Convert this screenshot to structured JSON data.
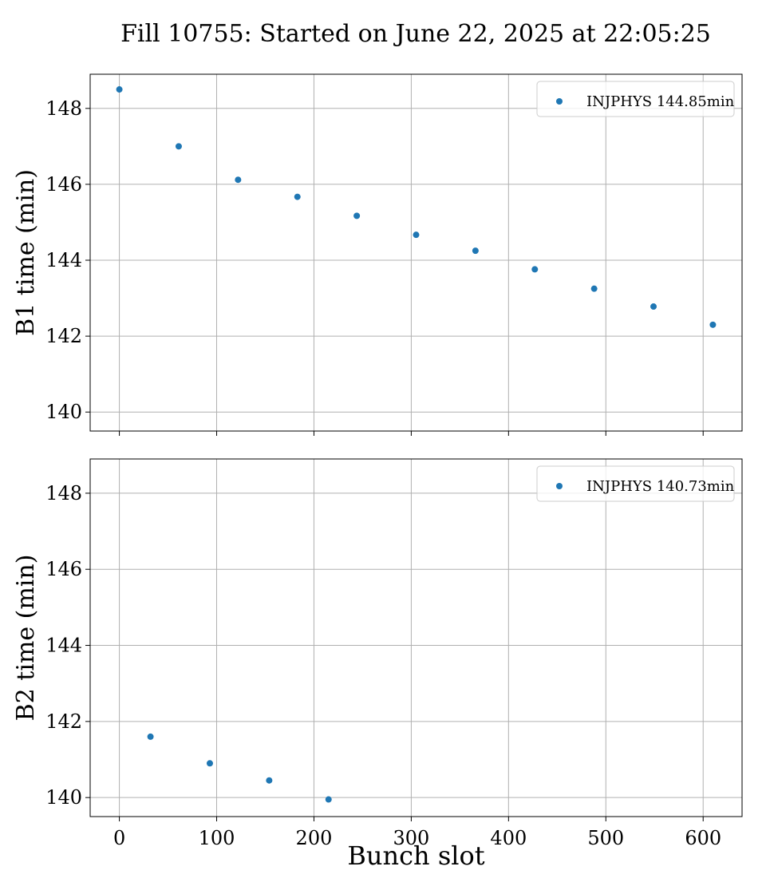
{
  "figure": {
    "suptitle": "Fill 10755: Started on June 22, 2025 at 22:05:25"
  },
  "chart_data": [
    {
      "type": "scatter",
      "panel": "top",
      "title": "",
      "xlabel": "",
      "ylabel": "B1 time (min)",
      "xlim": [
        -30,
        640
      ],
      "ylim": [
        139.5,
        148.9
      ],
      "xticks": [
        0,
        100,
        200,
        300,
        400,
        500,
        600
      ],
      "yticks": [
        140,
        142,
        144,
        146,
        148
      ],
      "show_xtick_labels": false,
      "grid": true,
      "legend_position": "top-right",
      "series": [
        {
          "name": "INJPHYS 144.85min",
          "color": "#1f77b4",
          "x": [
            0,
            61,
            122,
            183,
            244,
            305,
            366,
            427,
            488,
            549,
            610
          ],
          "y": [
            148.5,
            147.0,
            146.12,
            145.67,
            145.17,
            144.67,
            144.25,
            143.76,
            143.25,
            142.78,
            142.3
          ]
        }
      ]
    },
    {
      "type": "scatter",
      "panel": "bottom",
      "title": "",
      "xlabel": "Bunch slot",
      "ylabel": "B2 time (min)",
      "xlim": [
        -30,
        640
      ],
      "ylim": [
        139.5,
        148.9
      ],
      "xticks": [
        0,
        100,
        200,
        300,
        400,
        500,
        600
      ],
      "yticks": [
        140,
        142,
        144,
        146,
        148
      ],
      "show_xtick_labels": true,
      "grid": true,
      "legend_position": "top-right",
      "series": [
        {
          "name": "INJPHYS 140.73min",
          "color": "#1f77b4",
          "x": [
            32,
            93,
            154,
            215
          ],
          "y": [
            141.6,
            140.9,
            140.45,
            139.95
          ]
        }
      ]
    }
  ]
}
